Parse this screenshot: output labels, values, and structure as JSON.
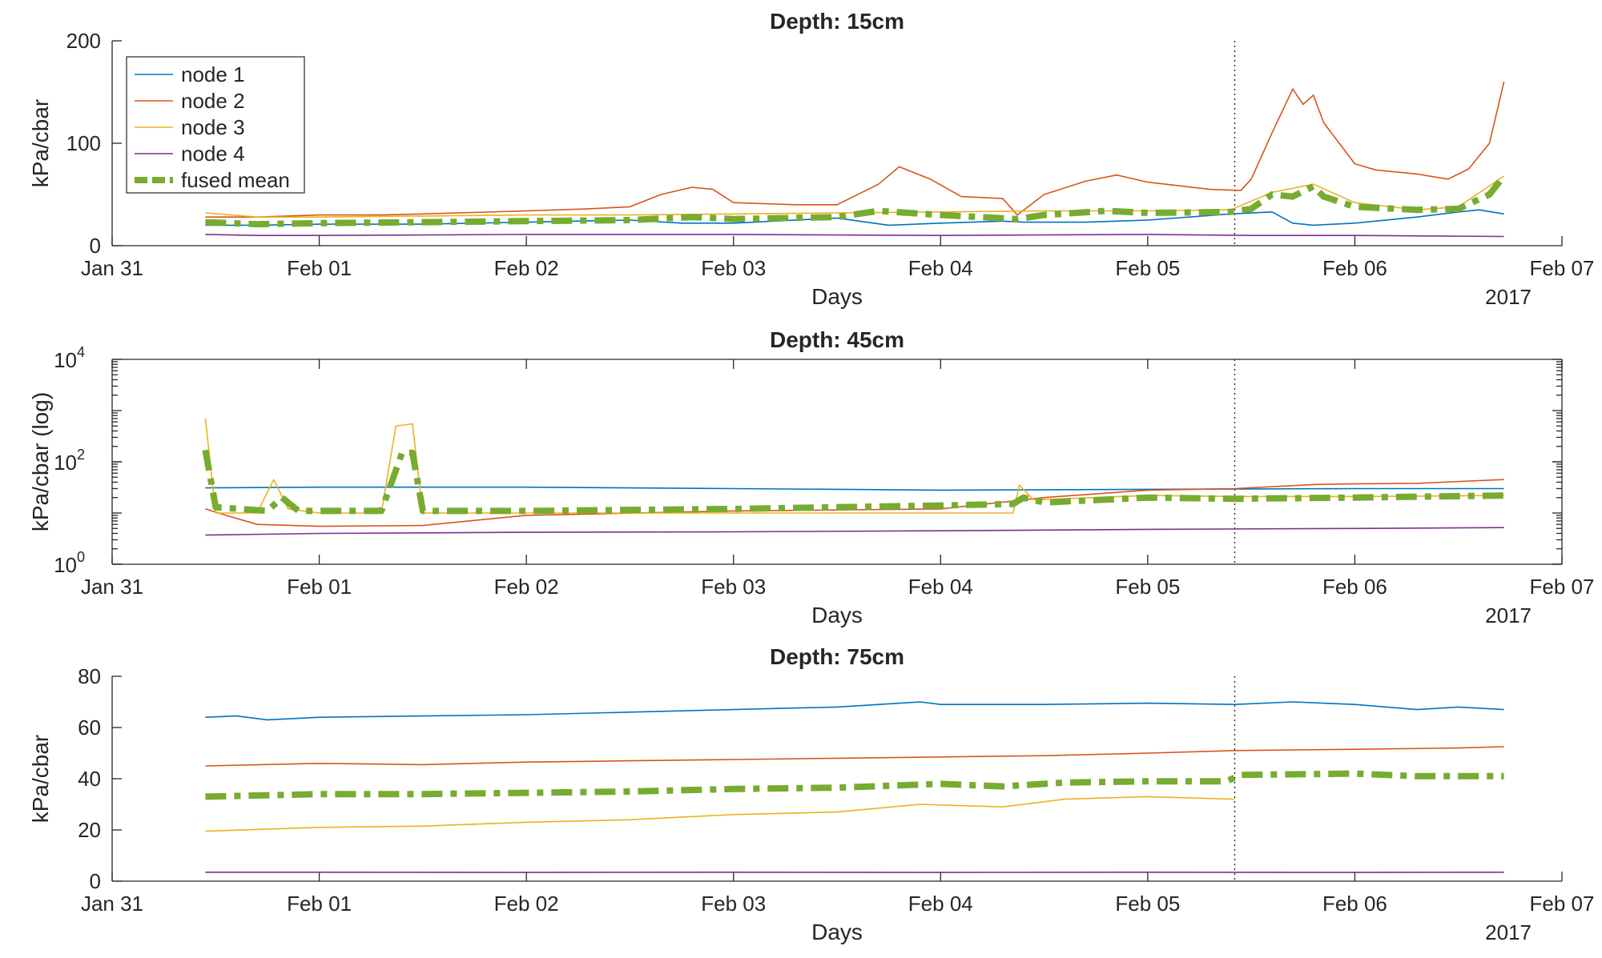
{
  "colors": {
    "node1": "#0072BD",
    "node2": "#D95319",
    "node3": "#EDB120",
    "node4": "#7E2F8E",
    "fused": "#77AC30",
    "axis": "#262626"
  },
  "chart_data": [
    {
      "type": "line",
      "title": "Depth: 15cm",
      "xlabel": "Days",
      "ylabel": "kPa/cbar",
      "yscale": "linear",
      "ylim": [
        0,
        200
      ],
      "yticks": [
        0,
        100,
        200
      ],
      "xlim": [
        0,
        7
      ],
      "xticks": [
        0,
        1,
        2,
        3,
        4,
        5,
        6,
        7
      ],
      "xtick_labels": [
        "Jan 31",
        "Feb 01",
        "Feb 02",
        "Feb 03",
        "Feb 04",
        "Feb 05",
        "Feb 06",
        "Feb 07"
      ],
      "year_label": "2017",
      "marker_x": 5.42,
      "legend": {
        "location": "top-left",
        "entries": [
          "node 1",
          "node 2",
          "node 3",
          "node 4",
          "fused mean"
        ]
      },
      "series": [
        {
          "name": "node 1",
          "color_key": "node1",
          "x": [
            0.45,
            0.7,
            1.0,
            1.5,
            2.0,
            2.5,
            2.75,
            3.0,
            3.5,
            3.75,
            4.0,
            4.3,
            4.4,
            4.7,
            5.0,
            5.4,
            5.6,
            5.7,
            5.8,
            6.0,
            6.3,
            6.5,
            6.6,
            6.72
          ],
          "y": [
            20,
            20,
            21,
            21,
            23,
            25,
            22,
            22,
            27,
            20,
            22,
            24,
            23,
            23,
            25,
            31,
            33,
            22,
            20,
            22,
            28,
            33,
            35,
            31
          ]
        },
        {
          "name": "node 2",
          "color_key": "node2",
          "x": [
            0.45,
            0.7,
            1.0,
            1.3,
            1.5,
            2.0,
            2.3,
            2.5,
            2.65,
            2.8,
            2.9,
            3.0,
            3.3,
            3.5,
            3.7,
            3.8,
            3.95,
            4.1,
            4.3,
            4.37,
            4.5,
            4.7,
            4.85,
            5.0,
            5.3,
            5.45,
            5.5,
            5.6,
            5.7,
            5.75,
            5.8,
            5.85,
            6.0,
            6.1,
            6.3,
            6.45,
            6.55,
            6.65,
            6.72
          ],
          "y": [
            28,
            28,
            30,
            30,
            31,
            34,
            36,
            38,
            50,
            57,
            55,
            42,
            40,
            40,
            60,
            77,
            65,
            48,
            46,
            30,
            50,
            63,
            69,
            62,
            55,
            54,
            65,
            110,
            153,
            138,
            147,
            120,
            80,
            74,
            70,
            65,
            75,
            100,
            160
          ]
        },
        {
          "name": "node 3",
          "color_key": "node3",
          "x": [
            0.45,
            0.7,
            1.0,
            1.5,
            2.0,
            2.5,
            3.0,
            3.5,
            4.0,
            4.5,
            5.0,
            5.4,
            5.6,
            5.8,
            6.0,
            6.3,
            6.5,
            6.72
          ],
          "y": [
            32,
            28,
            28,
            29,
            30,
            30,
            31,
            32,
            33,
            34,
            34,
            35,
            52,
            60,
            42,
            35,
            38,
            68
          ]
        },
        {
          "name": "node 4",
          "color_key": "node4",
          "x": [
            0.45,
            0.7,
            1.0,
            2.0,
            3.0,
            4.0,
            5.0,
            5.5,
            6.0,
            6.72
          ],
          "y": [
            11,
            10,
            10,
            11,
            11,
            10,
            11,
            10,
            10,
            9
          ]
        },
        {
          "name": "fused mean",
          "color_key": "fused",
          "fused": true,
          "x": [
            0.45,
            0.7,
            1.0,
            1.5,
            2.0,
            2.5,
            2.8,
            3.0,
            3.5,
            3.7,
            4.0,
            4.37,
            4.5,
            4.8,
            5.0,
            5.4,
            5.5,
            5.6,
            5.7,
            5.8,
            5.85,
            6.0,
            6.3,
            6.5,
            6.65,
            6.72
          ],
          "y": [
            23,
            21,
            22,
            23,
            24,
            25,
            28,
            26,
            28,
            34,
            30,
            26,
            30,
            34,
            32,
            33,
            36,
            50,
            48,
            58,
            48,
            38,
            35,
            36,
            50,
            68
          ]
        }
      ]
    },
    {
      "type": "line",
      "title": "Depth: 45cm",
      "xlabel": "Days",
      "ylabel": "kPa/cbar (log)",
      "yscale": "log",
      "ylim": [
        1,
        10000
      ],
      "yticks": [
        1,
        100,
        10000
      ],
      "ytick_labels": [
        {
          "base": "10",
          "exp": "0"
        },
        {
          "base": "10",
          "exp": "2"
        },
        {
          "base": "10",
          "exp": "4"
        }
      ],
      "xlim": [
        0,
        7
      ],
      "xticks": [
        0,
        1,
        2,
        3,
        4,
        5,
        6,
        7
      ],
      "xtick_labels": [
        "Jan 31",
        "Feb 01",
        "Feb 02",
        "Feb 03",
        "Feb 04",
        "Feb 05",
        "Feb 06",
        "Feb 07"
      ],
      "year_label": "2017",
      "marker_x": 5.42,
      "series": [
        {
          "name": "node 1",
          "color_key": "node1",
          "x": [
            0.45,
            1.0,
            2.0,
            3.0,
            4.0,
            5.0,
            6.0,
            6.72
          ],
          "y": [
            31,
            32,
            32,
            30,
            28,
            29,
            30,
            30
          ]
        },
        {
          "name": "node 2",
          "color_key": "node2",
          "x": [
            0.45,
            0.55,
            0.7,
            1.0,
            1.5,
            2.0,
            3.0,
            4.0,
            4.5,
            5.0,
            5.42,
            5.8,
            6.0,
            6.3,
            6.72
          ],
          "y": [
            12,
            9,
            6,
            5.5,
            5.7,
            9,
            11,
            12,
            20,
            28,
            30,
            36,
            37,
            38,
            45
          ]
        },
        {
          "name": "node 3",
          "color_key": "node3",
          "x": [
            0.45,
            0.5,
            0.7,
            0.78,
            0.85,
            1.0,
            1.3,
            1.37,
            1.45,
            1.5,
            2.0,
            3.0,
            4.0,
            4.35,
            4.38,
            4.45,
            5.0,
            5.42,
            6.0,
            6.72
          ],
          "y": [
            700,
            10,
            10,
            45,
            12,
            10,
            10,
            500,
            550,
            10,
            10,
            10,
            10,
            10,
            35,
            18,
            22,
            21,
            21,
            22
          ]
        },
        {
          "name": "node 4",
          "color_key": "node4",
          "x": [
            0.45,
            1.0,
            2.0,
            3.0,
            4.0,
            5.0,
            6.0,
            6.72
          ],
          "y": [
            3.7,
            4.0,
            4.2,
            4.3,
            4.5,
            4.8,
            5.0,
            5.2
          ]
        },
        {
          "name": "fused mean",
          "color_key": "fused",
          "fused": true,
          "x": [
            0.45,
            0.5,
            0.75,
            0.82,
            0.9,
            1.3,
            1.4,
            1.45,
            1.5,
            2.0,
            3.0,
            4.0,
            4.35,
            4.4,
            4.5,
            5.0,
            5.42,
            6.0,
            6.72
          ],
          "y": [
            170,
            13,
            11,
            20,
            11,
            11,
            150,
            150,
            11,
            11,
            12,
            14,
            15,
            20,
            16,
            20,
            19,
            20,
            22
          ]
        }
      ]
    },
    {
      "type": "line",
      "title": "Depth: 75cm",
      "xlabel": "Days",
      "ylabel": "kPa/cbar",
      "yscale": "linear",
      "ylim": [
        0,
        80
      ],
      "yticks": [
        0,
        20,
        40,
        60,
        80
      ],
      "xlim": [
        0,
        7
      ],
      "xticks": [
        0,
        1,
        2,
        3,
        4,
        5,
        6,
        7
      ],
      "xtick_labels": [
        "Jan 31",
        "Feb 01",
        "Feb 02",
        "Feb 03",
        "Feb 04",
        "Feb 05",
        "Feb 06",
        "Feb 07"
      ],
      "year_label": "2017",
      "marker_x": 5.42,
      "series": [
        {
          "name": "node 1",
          "color_key": "node1",
          "x": [
            0.45,
            0.6,
            0.75,
            1.0,
            1.5,
            2.0,
            2.5,
            3.0,
            3.5,
            3.9,
            4.0,
            4.5,
            5.0,
            5.42,
            5.7,
            6.0,
            6.3,
            6.5,
            6.72
          ],
          "y": [
            64,
            64.5,
            63,
            64,
            64.5,
            65,
            66,
            67,
            68,
            70,
            69,
            69,
            69.5,
            69,
            70,
            69,
            67,
            68,
            67
          ]
        },
        {
          "name": "node 2",
          "color_key": "node2",
          "x": [
            0.45,
            1.0,
            1.5,
            2.0,
            2.5,
            3.0,
            3.5,
            4.0,
            4.5,
            5.0,
            5.42,
            6.0,
            6.5,
            6.72
          ],
          "y": [
            45,
            46,
            45.5,
            46.5,
            47,
            47.5,
            48,
            48.5,
            49,
            50,
            51,
            51.5,
            52,
            52.5
          ]
        },
        {
          "name": "node 3",
          "color_key": "node3",
          "x": [
            0.45,
            1.0,
            1.5,
            2.0,
            2.5,
            3.0,
            3.5,
            3.9,
            4.3,
            4.6,
            5.0,
            5.42
          ],
          "y": [
            19.5,
            21,
            21.5,
            23,
            24,
            26,
            27,
            30,
            29,
            32,
            33,
            32
          ]
        },
        {
          "name": "node 4",
          "color_key": "node4",
          "x": [
            0.45,
            1.0,
            2.0,
            3.0,
            4.0,
            5.0,
            6.0,
            6.72
          ],
          "y": [
            3.5,
            3.5,
            3.4,
            3.5,
            3.4,
            3.5,
            3.4,
            3.5
          ]
        },
        {
          "name": "fused mean",
          "color_key": "fused",
          "fused": true,
          "x": [
            0.45,
            1.0,
            1.5,
            2.0,
            2.5,
            3.0,
            3.5,
            4.0,
            4.3,
            4.6,
            5.0,
            5.38,
            5.45,
            6.0,
            6.3,
            6.5,
            6.72
          ],
          "y": [
            33,
            34,
            34,
            34.5,
            35,
            36,
            36.5,
            38,
            37,
            38.5,
            39,
            39,
            41.5,
            42,
            41,
            41,
            41
          ]
        }
      ]
    }
  ]
}
